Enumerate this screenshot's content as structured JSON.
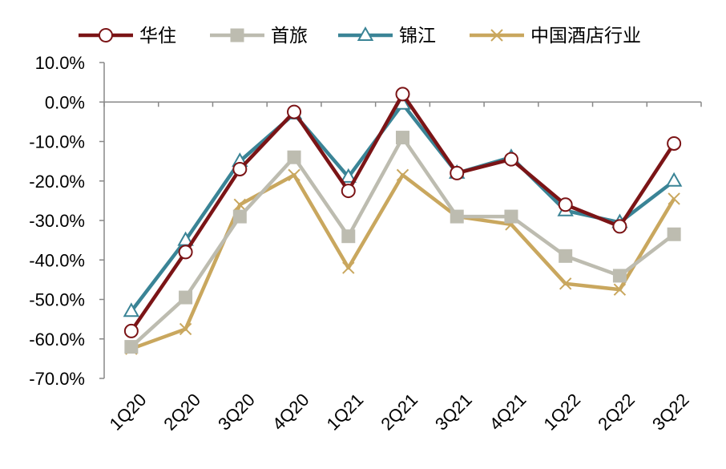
{
  "chart_data": {
    "type": "line",
    "categories": [
      "1Q20",
      "2Q20",
      "3Q20",
      "4Q20",
      "1Q21",
      "2Q21",
      "3Q21",
      "4Q21",
      "1Q22",
      "2Q22",
      "3Q22"
    ],
    "ylim": [
      -70,
      10
    ],
    "yticks": [
      10,
      0,
      -10,
      -20,
      -30,
      -40,
      -50,
      -60,
      -70
    ],
    "ytick_labels": [
      "10.0%",
      "0.0%",
      "-10.0%",
      "-20.0%",
      "-30.0%",
      "-40.0%",
      "-50.0%",
      "-60.0%",
      "-70.0%"
    ],
    "grid": false,
    "legend_position": "top",
    "series": [
      {
        "name": "华住",
        "color": "#7B1416",
        "marker": "circle",
        "values": [
          -58.0,
          -38.0,
          -17.0,
          -2.5,
          -22.5,
          2.0,
          -18.0,
          -14.5,
          -26.0,
          -31.5,
          -10.5
        ]
      },
      {
        "name": "首旅",
        "color": "#BDBCB0",
        "marker": "square",
        "values": [
          -62.0,
          -49.5,
          -29.0,
          -14.0,
          -34.0,
          -9.0,
          -29.0,
          -29.0,
          -39.0,
          -44.0,
          -33.5
        ]
      },
      {
        "name": "锦江",
        "color": "#3A8496",
        "marker": "triangle",
        "values": [
          -53.0,
          -35.0,
          -15.0,
          -3.0,
          -19.0,
          -0.5,
          -18.0,
          -14.0,
          -27.5,
          -30.5,
          -20.0
        ]
      },
      {
        "name": "中国酒店行业",
        "color": "#C9A75E",
        "marker": "cross",
        "values": [
          -62.5,
          -57.5,
          -26.0,
          -18.5,
          -42.0,
          -18.5,
          -29.0,
          -31.0,
          -46.0,
          -47.5,
          -24.5
        ]
      }
    ]
  }
}
